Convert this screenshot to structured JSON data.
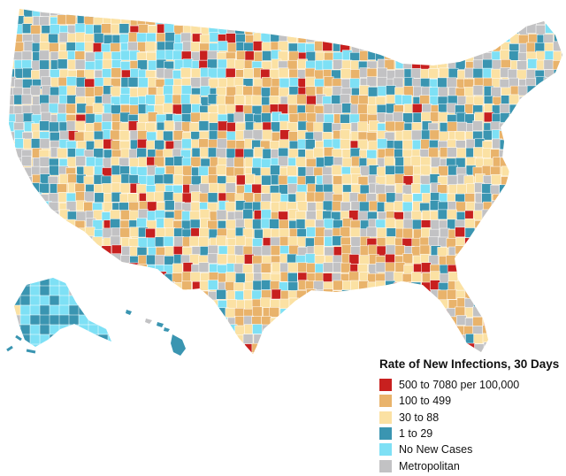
{
  "legend": {
    "title": "Rate of New Infections, 30 Days",
    "items": [
      {
        "label": "500 to 7080 per 100,000",
        "color": "#c8201f"
      },
      {
        "label": "100 to 499",
        "color": "#e9b36b"
      },
      {
        "label": "30 to 88",
        "color": "#fbe1a3"
      },
      {
        "label": "1 to 29",
        "color": "#3a95b1"
      },
      {
        "label": "No New Cases",
        "color": "#7ee0f5"
      },
      {
        "label": "Metropolitan",
        "color": "#c2c2c4"
      }
    ]
  }
}
